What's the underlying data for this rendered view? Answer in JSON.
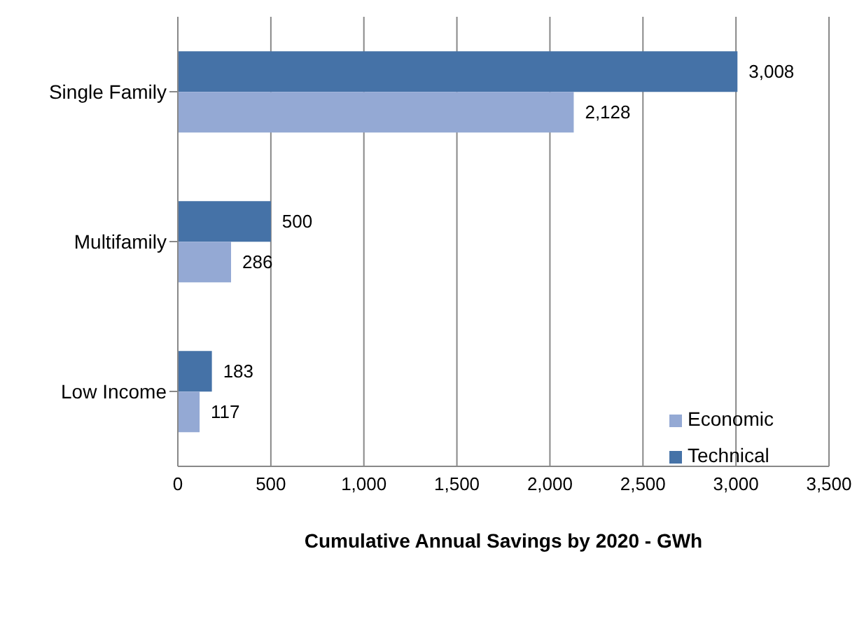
{
  "chart_data": {
    "type": "bar",
    "orientation": "horizontal",
    "xlabel": "Cumulative Annual Savings by 2020 - GWh",
    "categories": [
      "Single Family",
      "Multifamily",
      "Low Income"
    ],
    "series": [
      {
        "name": "Technical",
        "color": "#4572a7",
        "values": [
          3008,
          500,
          183
        ],
        "value_labels": [
          "3,008",
          "500",
          "183"
        ]
      },
      {
        "name": "Economic",
        "color": "#94a9d4",
        "values": [
          2128,
          286,
          117
        ],
        "value_labels": [
          "2,128",
          "286",
          "117"
        ]
      }
    ],
    "xlim": [
      0,
      3500
    ],
    "xticks": [
      0,
      500,
      {
        "value": 1000,
        "label": "1,000"
      },
      {
        "value": 1500,
        "label": "1,500"
      },
      {
        "value": 2000,
        "label": "2,000"
      },
      {
        "value": 2500,
        "label": "2,500"
      },
      {
        "value": 3000,
        "label": "3,000"
      },
      {
        "value": 3500,
        "label": "3,500"
      }
    ],
    "grid": "x",
    "legend": "bottom right"
  }
}
